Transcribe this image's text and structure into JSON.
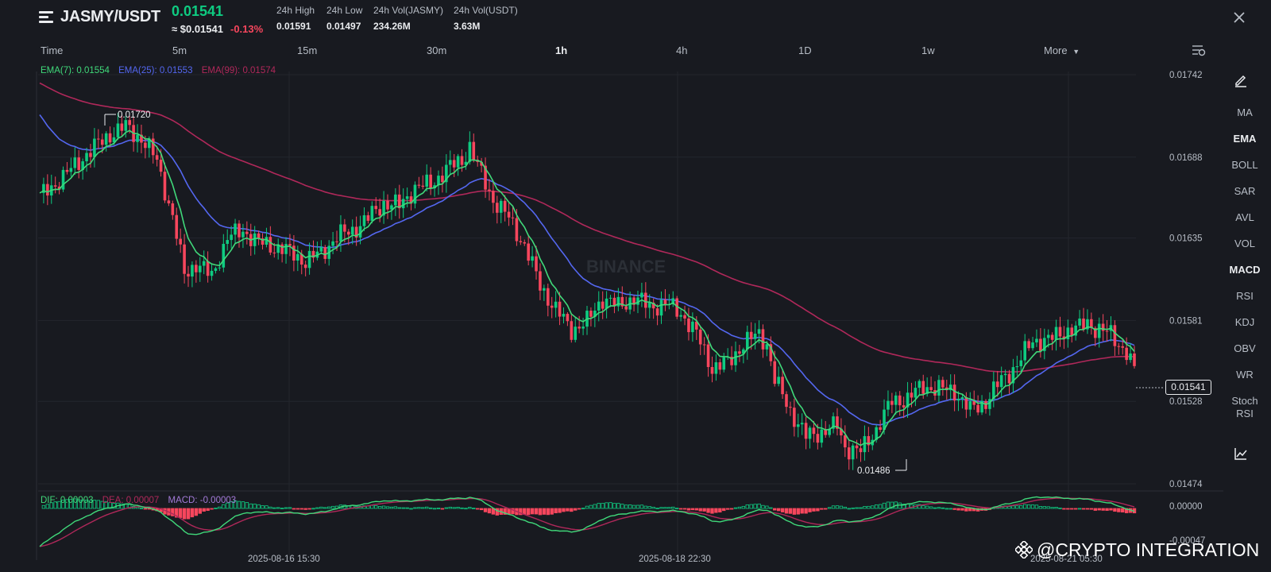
{
  "header": {
    "pair": "JASMY/USDT",
    "last_price": "0.01541",
    "fiat_price": "≈ $0.01541",
    "change_pct": "-0.13%",
    "stats": [
      {
        "label": "24h High",
        "value": "0.01591"
      },
      {
        "label": "24h Low",
        "value": "0.01497"
      },
      {
        "label": "24h Vol(JASMY)",
        "value": "234.26M"
      },
      {
        "label": "24h Vol(USDT)",
        "value": "3.63M"
      }
    ]
  },
  "intervals": [
    {
      "label": "Time",
      "active": false
    },
    {
      "label": "5m",
      "active": false
    },
    {
      "label": "15m",
      "active": false
    },
    {
      "label": "30m",
      "active": false
    },
    {
      "label": "1h",
      "active": true
    },
    {
      "label": "4h",
      "active": false
    },
    {
      "label": "1D",
      "active": false
    },
    {
      "label": "1w",
      "active": false
    },
    {
      "label": "More",
      "active": false
    }
  ],
  "ema_legend": {
    "ema7": "EMA(7): 0.01554",
    "ema25": "EMA(25): 0.01553",
    "ema99": "EMA(99): 0.01574"
  },
  "macd_legend": {
    "dif": "DIF: 0.00003",
    "dea": "DEA: 0.00007",
    "macd": "MACD: -0.00003"
  },
  "side_tools": [
    "MA",
    "EMA",
    "BOLL",
    "SAR",
    "AVL",
    "VOL",
    "MACD",
    "RSI",
    "KDJ",
    "OBV",
    "WR",
    "Stoch RSI"
  ],
  "active_tools": [
    "EMA",
    "MACD"
  ],
  "chart": {
    "price_ticks": [
      "0.01742",
      "0.01688",
      "0.01635",
      "0.01581",
      "0.01528",
      "0.01474"
    ],
    "macd_ticks": [
      "0.00000",
      "-0.00047"
    ],
    "time_ticks": [
      "2025-08-16 15:30",
      "2025-08-18 22:30",
      "2025-08-21 05:30"
    ],
    "high_marker": "0.01720",
    "low_marker": "0.01486",
    "current_price": "0.01541",
    "chart_watermark": "BINANCE"
  },
  "watermark": "@CRYPTO INTEGRATION",
  "colors": {
    "up": "#0ecb81",
    "down": "#f6465d",
    "ema7": "#40d97a",
    "ema25": "#5467f0",
    "ema99": "#b0285a",
    "background": "#181a20"
  },
  "icons": {
    "menu": "menu-icon",
    "close": "close-icon",
    "settings": "chart-settings-icon",
    "draw": "pencil-icon",
    "indicators": "chart-line-icon"
  }
}
